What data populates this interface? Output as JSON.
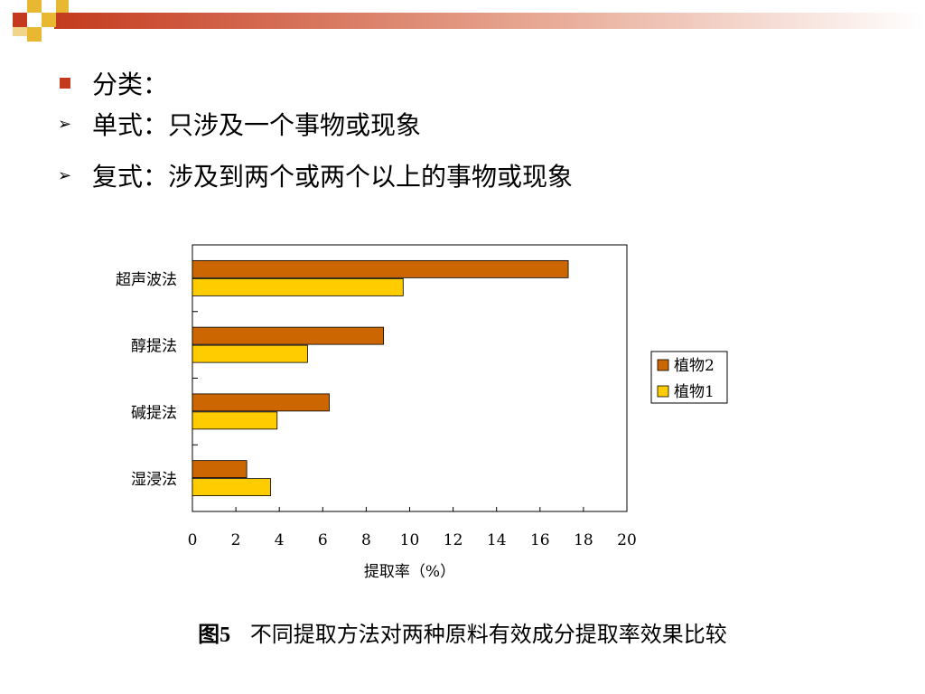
{
  "slide": {
    "accent_color": "#c43a1e",
    "bullets": [
      {
        "marker": "square",
        "text": "分类："
      },
      {
        "marker": "arrow",
        "text": "单式：只涉及一个事物或现象"
      },
      {
        "marker": "arrow",
        "text": "复式：涉及到两个或两个以上的事物或现象"
      }
    ]
  },
  "caption": {
    "figure_number": "图5",
    "text": "不同提取方法对两种原料有效成分提取率效果比较"
  },
  "chart_data": {
    "type": "bar",
    "orientation": "horizontal",
    "categories": [
      "超声波法",
      "醇提法",
      "碱提法",
      "湿浸法"
    ],
    "series": [
      {
        "name": "植物2",
        "color": "#cc6600",
        "values": [
          17.3,
          8.8,
          6.3,
          2.5
        ]
      },
      {
        "name": "植物1",
        "color": "#ffcc00",
        "values": [
          9.7,
          5.3,
          3.9,
          3.6
        ]
      }
    ],
    "xlabel": "提取率（%）",
    "xlim": [
      0,
      20
    ],
    "xticks": [
      "0",
      "2",
      "4",
      "6",
      "8",
      "10",
      "12",
      "14",
      "16",
      "18",
      "20"
    ],
    "grid": false,
    "legend_position": "right"
  }
}
